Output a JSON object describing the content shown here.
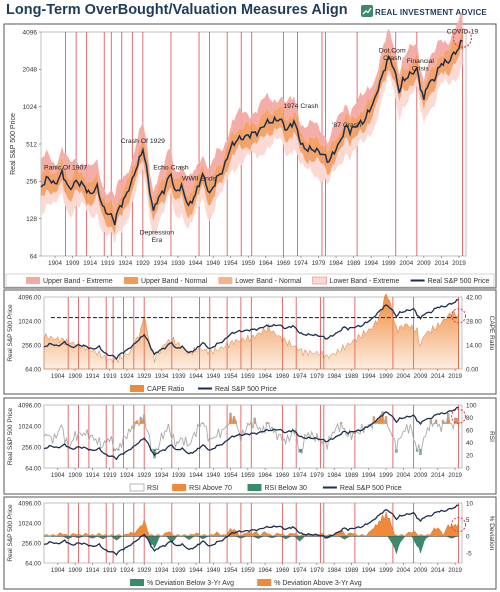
{
  "title": "Long-Term OverBought/Valuation Measures Align",
  "brand": "REAL INVESTMENT ADVICE",
  "colors": {
    "navy": "#1f3b5a",
    "price": "#1c2f4f",
    "band_extreme_fill": "#f4a9a2",
    "band_normal_fill": "#f39a5a",
    "lower_extreme_fill": "#fbd8d2",
    "recession_line": "#e0474c",
    "cape_fill": "#f08a3a",
    "rsi_above": "#f08a3a",
    "rsi_below": "#3a8b6a",
    "dev_below": "#3a8b6a",
    "dev_above": "#f08a3a",
    "rsi_line": "#aaaaaa",
    "covid_circle": "#e0474c"
  },
  "chart_data": [
    {
      "type": "line",
      "panel": "main",
      "ylabel": "Real S&P 500 Price",
      "ylim": [
        64,
        4096
      ],
      "y_ticks": [
        "4096",
        "2048",
        "1024",
        "512",
        "256",
        "128",
        "64"
      ],
      "log_scale": true,
      "x_ticks": [
        "1904",
        "1909",
        "1914",
        "1919",
        "1924",
        "1929",
        "1934",
        "1939",
        "1944",
        "1949",
        "1954",
        "1959",
        "1964",
        "1969",
        "1974",
        "1979",
        "1984",
        "1989",
        "1994",
        "1999",
        "2004",
        "2009",
        "2014",
        "2019"
      ],
      "xlim": [
        1900,
        2021
      ],
      "series": [
        {
          "name": "Real S&P 500 Price",
          "x": [
            1900,
            1902,
            1904,
            1906,
            1907,
            1908,
            1910,
            1912,
            1914,
            1916,
            1917,
            1918,
            1920,
            1921,
            1922,
            1924,
            1926,
            1928,
            1929,
            1930,
            1931,
            1932,
            1933,
            1935,
            1937,
            1938,
            1940,
            1942,
            1944,
            1946,
            1948,
            1949,
            1950,
            1952,
            1954,
            1956,
            1958,
            1960,
            1962,
            1964,
            1966,
            1968,
            1970,
            1972,
            1974,
            1975,
            1978,
            1980,
            1982,
            1985,
            1987,
            1988,
            1990,
            1992,
            1995,
            1997,
            1999,
            2000,
            2001,
            2002,
            2003,
            2005,
            2007,
            2008,
            2009,
            2010,
            2012,
            2014,
            2016,
            2018,
            2019,
            2020
          ],
          "values": [
            230,
            275,
            240,
            300,
            260,
            220,
            255,
            240,
            200,
            230,
            180,
            150,
            135,
            120,
            150,
            190,
            260,
            380,
            470,
            330,
            210,
            145,
            180,
            215,
            300,
            210,
            230,
            160,
            200,
            290,
            200,
            230,
            270,
            320,
            480,
            560,
            580,
            620,
            640,
            760,
            780,
            820,
            660,
            780,
            520,
            470,
            460,
            430,
            370,
            520,
            720,
            650,
            730,
            780,
            1150,
            1750,
            2550,
            2300,
            1800,
            1350,
            1650,
            1850,
            2050,
            1500,
            1150,
            1550,
            1700,
            2300,
            2350,
            2850,
            3000,
            3650
          ]
        },
        {
          "name": "Upper Band - Extreme"
        },
        {
          "name": "Upper Band - Normal"
        },
        {
          "name": "Lower Band - Normal"
        },
        {
          "name": "Lower Band - Extreme"
        }
      ],
      "recessions_x": [
        1907,
        1910,
        1913,
        1918,
        1920,
        1923,
        1926,
        1929,
        1937,
        1945,
        1948,
        1953,
        1957,
        1960,
        1969,
        1973,
        1980,
        1981,
        1990,
        2001,
        2007,
        2020
      ],
      "annotations": [
        {
          "text": "Panic Of 1907",
          "x": 1907,
          "y": 320
        },
        {
          "text": "Crash Of 1929",
          "x": 1929,
          "y": 520
        },
        {
          "text": "Echo Crash",
          "x": 1937,
          "y": 320
        },
        {
          "text": "WWII Ends",
          "x": 1945,
          "y": 260
        },
        {
          "text": "Depression Era",
          "x": 1933,
          "y": 95
        },
        {
          "text": "1974 Crash",
          "x": 1974,
          "y": 1000
        },
        {
          "text": "'87 Crash",
          "x": 1987,
          "y": 700
        },
        {
          "text": "Dot.Com Crash",
          "x": 2000,
          "y": 2800
        },
        {
          "text": "Financial Crisis",
          "x": 2008,
          "y": 2300
        },
        {
          "text": "COVID-19",
          "x": 2020,
          "y": 4400
        }
      ],
      "legend": [
        "Upper Band - Extreme",
        "Upper Band - Normal",
        "Lower Band - Normal",
        "Lower Band - Extreme",
        "Real S&P 500 Price"
      ]
    },
    {
      "type": "area",
      "panel": "cape",
      "ylabel": "Real S&P 500 Price",
      "ylabel_right": "CAPE Ratio",
      "y_ticks": [
        "4096.00",
        "1024.00",
        "256.00",
        "64.00"
      ],
      "y_ticks_right": [
        "42.00",
        "28.00",
        "14.00",
        "0.00"
      ],
      "ylim_right": [
        0,
        42
      ],
      "x_ticks": [
        "1904",
        "1909",
        "1914",
        "1919",
        "1924",
        "1929",
        "1934",
        "1939",
        "1944",
        "1949",
        "1954",
        "1959",
        "1964",
        "1969",
        "1974",
        "1979",
        "1984",
        "1989",
        "1994",
        "1999",
        "2004",
        "2009",
        "2014",
        "2019"
      ],
      "series": [
        {
          "name": "CAPE Ratio",
          "x": [
            1900,
            1905,
            1910,
            1915,
            1918,
            1920,
            1922,
            1925,
            1928,
            1929,
            1930,
            1932,
            1935,
            1937,
            1940,
            1942,
            1945,
            1948,
            1950,
            1955,
            1960,
            1965,
            1966,
            1970,
            1975,
            1980,
            1982,
            1985,
            1990,
            1995,
            1997,
            1999,
            2000,
            2002,
            2005,
            2008,
            2009,
            2010,
            2014,
            2018,
            2020
          ],
          "values": [
            19,
            17,
            14,
            10,
            6,
            5,
            6,
            10,
            22,
            32,
            20,
            6,
            15,
            17,
            13,
            9,
            12,
            10,
            11,
            16,
            18,
            24,
            22,
            16,
            10,
            9,
            7,
            10,
            17,
            24,
            30,
            44,
            40,
            23,
            26,
            22,
            13,
            20,
            25,
            33,
            31
          ]
        },
        {
          "name": "Real S&P 500 Price"
        }
      ],
      "reference_line": 30,
      "legend": [
        "CAPE Ratio",
        "Real S&P 500 Price"
      ]
    },
    {
      "type": "line",
      "panel": "rsi",
      "ylabel": "Real S&P 500 Price",
      "ylabel_right": "RSI",
      "y_ticks": [
        "4096.00",
        "1024.00",
        "256.00",
        "64.00"
      ],
      "y_ticks_right": [
        "100",
        "80",
        "60",
        "40",
        "20",
        "0"
      ],
      "ylim_right": [
        0,
        100
      ],
      "x_ticks": [
        "1904",
        "1909",
        "1914",
        "1919",
        "1924",
        "1929",
        "1934",
        "1939",
        "1944",
        "1949",
        "1954",
        "1959",
        "1964",
        "1969",
        "1974",
        "1979",
        "1984",
        "1989",
        "1994",
        "1999",
        "2004",
        "2009",
        "2014",
        "2019"
      ],
      "series": [
        {
          "name": "RSI",
          "x": [
            1900,
            1903,
            1905,
            1907,
            1909,
            1912,
            1915,
            1917,
            1919,
            1921,
            1923,
            1925,
            1927,
            1929,
            1931,
            1932,
            1934,
            1936,
            1938,
            1940,
            1942,
            1944,
            1946,
            1948,
            1950,
            1952,
            1954,
            1955,
            1957,
            1959,
            1961,
            1963,
            1965,
            1967,
            1970,
            1973,
            1974,
            1976,
            1979,
            1982,
            1984,
            1986,
            1988,
            1990,
            1993,
            1995,
            1997,
            1998,
            2000,
            2002,
            2004,
            2006,
            2008,
            2009,
            2011,
            2013,
            2015,
            2017,
            2018,
            2019,
            2020
          ],
          "values": [
            55,
            45,
            68,
            30,
            52,
            55,
            45,
            35,
            48,
            26,
            45,
            60,
            72,
            80,
            35,
            18,
            48,
            65,
            38,
            46,
            36,
            58,
            74,
            44,
            52,
            60,
            78,
            82,
            46,
            68,
            72,
            58,
            70,
            55,
            42,
            62,
            18,
            55,
            48,
            38,
            60,
            68,
            52,
            54,
            64,
            70,
            80,
            86,
            62,
            34,
            58,
            66,
            30,
            28,
            62,
            74,
            64,
            82,
            66,
            74,
            80
          ]
        },
        {
          "name": "RSI Above 70"
        },
        {
          "name": "RSI Below 30"
        },
        {
          "name": "Real S&P 500 Price"
        }
      ],
      "thresholds": [
        70,
        30
      ],
      "legend": [
        "RSI",
        "RSI Above 70",
        "RSI Below 30",
        "Real S&P 500 Price"
      ]
    },
    {
      "type": "area",
      "panel": "deviation",
      "ylabel": "Real S&P 500 Price",
      "ylabel_right": "% Deviation",
      "y_ticks": [
        "4096.00",
        "1024.00",
        "256.00",
        "64.00"
      ],
      "y_ticks_right": [
        "10",
        "5",
        "0",
        "-5"
      ],
      "ylim_right": [
        -8,
        10
      ],
      "x_ticks": [
        "1904",
        "1909",
        "1914",
        "1919",
        "1924",
        "1929",
        "1934",
        "1939",
        "1944",
        "1949",
        "1954",
        "1959",
        "1964",
        "1969",
        "1974",
        "1979",
        "1984",
        "1989",
        "1994",
        "1999",
        "2004",
        "2009",
        "2014",
        "2019"
      ],
      "series": [
        {
          "name": "% Deviation Below 3-Yr Avg",
          "x": [
            1907,
            1910,
            1914,
            1917,
            1921,
            1931,
            1932,
            1937,
            1942,
            1946,
            1957,
            1962,
            1966,
            1970,
            1974,
            1982,
            1987,
            2001,
            2002,
            2003,
            2008,
            2009,
            2010,
            2018
          ],
          "values": [
            -0.8,
            -0.5,
            -0.6,
            -0.8,
            -1.2,
            -2.5,
            -3.5,
            -2.0,
            -1.0,
            -0.8,
            -0.6,
            -0.7,
            -0.5,
            -0.8,
            -1.5,
            -0.6,
            -0.9,
            -2.5,
            -5.2,
            -2.0,
            -3.0,
            -5.0,
            -1.0,
            -0.6
          ]
        },
        {
          "name": "% Deviation Above 3-Yr Avg",
          "x": [
            1905,
            1909,
            1912,
            1916,
            1925,
            1927,
            1928,
            1929,
            1936,
            1944,
            1950,
            1954,
            1955,
            1959,
            1961,
            1964,
            1968,
            1972,
            1980,
            1985,
            1986,
            1989,
            1995,
            1996,
            1997,
            1998,
            1999,
            2000,
            2006,
            2007,
            2013,
            2014,
            2017,
            2018,
            2019,
            2020
          ],
          "values": [
            0.6,
            0.5,
            0.4,
            0.4,
            0.8,
            1.5,
            3.0,
            4.5,
            1.2,
            0.6,
            0.8,
            1.8,
            2.0,
            1.0,
            1.0,
            1.0,
            0.6,
            0.7,
            0.5,
            0.9,
            1.5,
            0.8,
            2.0,
            3.0,
            4.5,
            6.0,
            7.2,
            5.0,
            1.0,
            1.2,
            2.0,
            2.5,
            3.0,
            3.5,
            3.2,
            4.0
          ]
        },
        {
          "name": "Real S&P 500 Price"
        }
      ],
      "legend": [
        "% Deviation Below 3-Yr Avg",
        "% Deviation Above 3-Yr Avg",
        "Real S&P 500 Price"
      ]
    }
  ]
}
